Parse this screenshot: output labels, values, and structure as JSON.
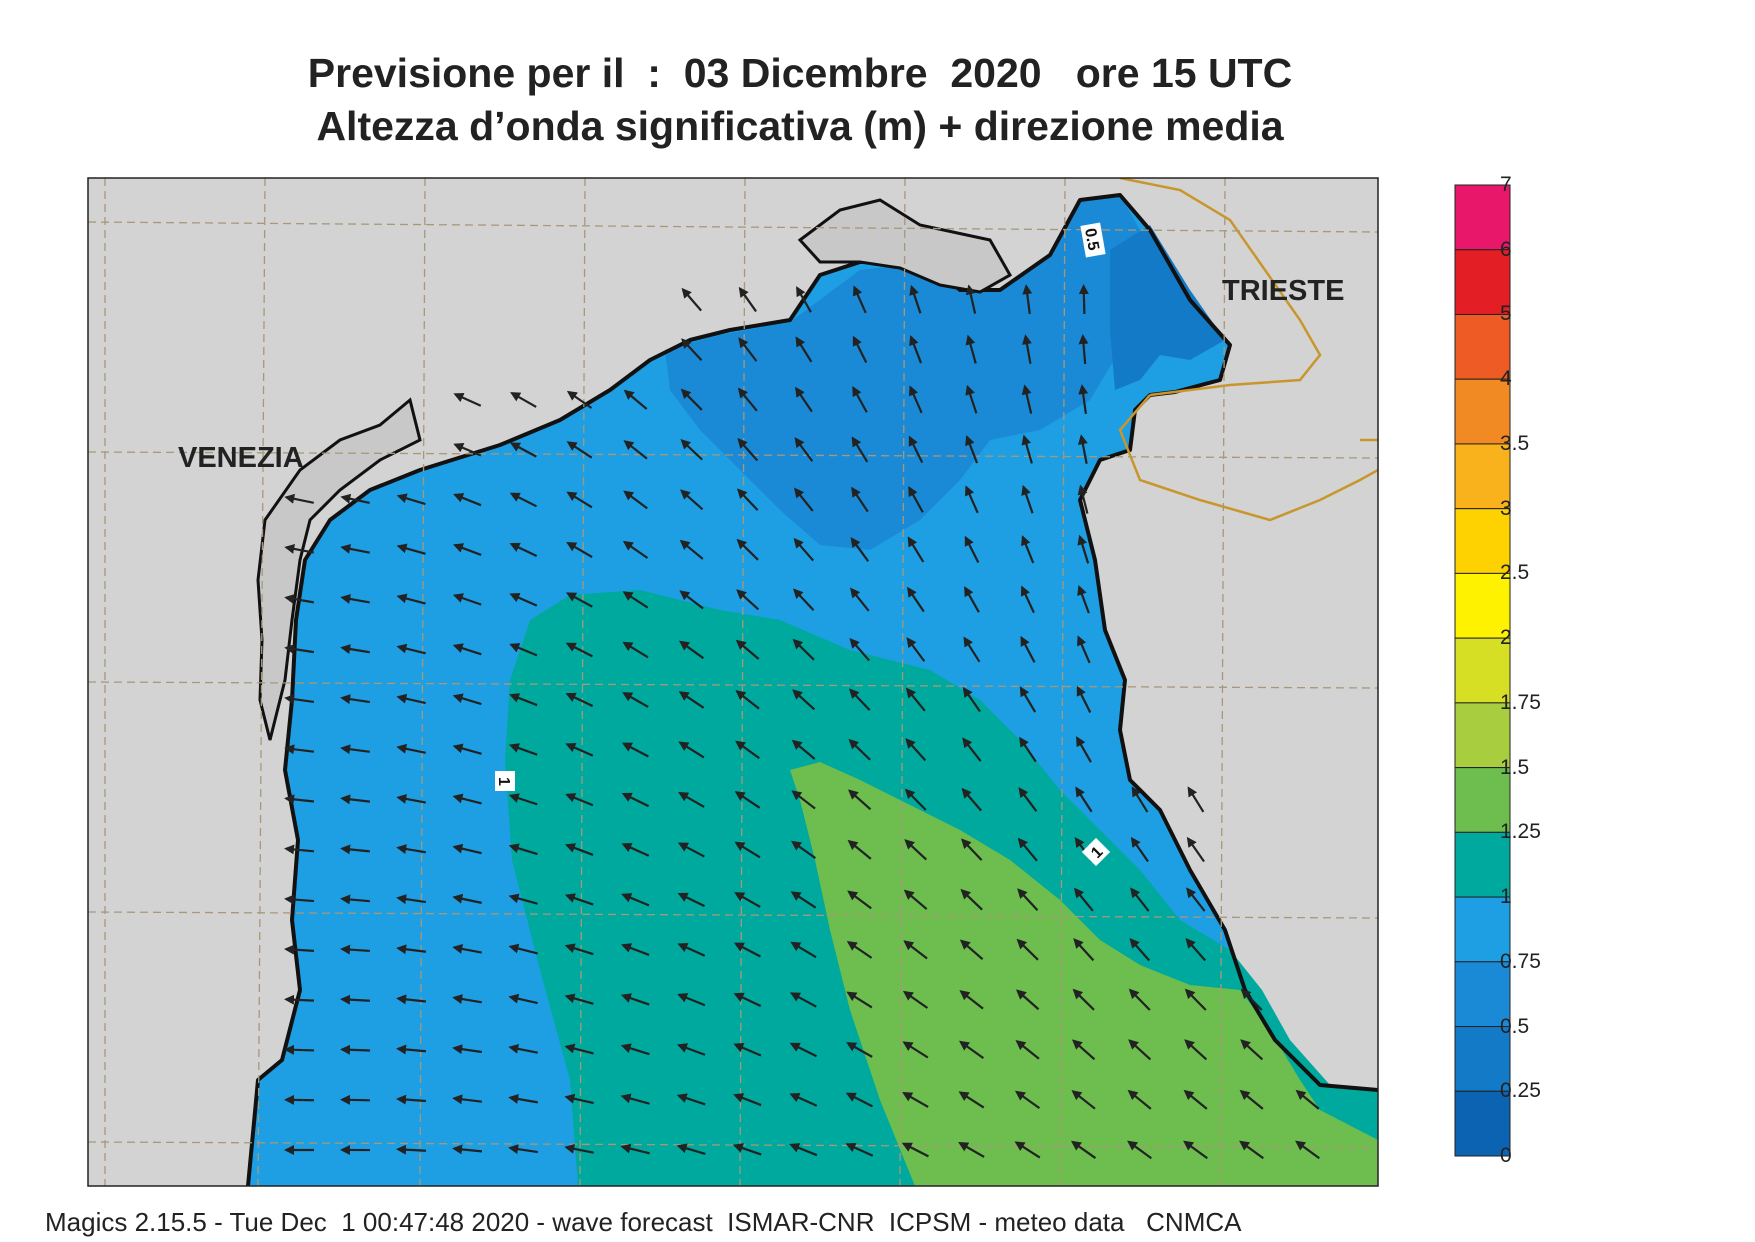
{
  "title": {
    "line1": "Previsione per il  :  03 Dicembre  2020   ore 15 UTC",
    "line2": "Altezza d’onda significativa (m) + direzione media"
  },
  "places": {
    "venezia": "VENEZIA",
    "trieste": "TRIESTE"
  },
  "contour_labels": {
    "low": "0.5",
    "mid_west": "1",
    "mid_east": "1"
  },
  "colorbar": {
    "labels": [
      "7",
      "6",
      "5",
      "4",
      "3.5",
      "3",
      "2.5",
      "2",
      "1.75",
      "1.5",
      "1.25",
      "1",
      "0.75",
      "0.5",
      "0.25",
      "0"
    ],
    "colors": [
      "#e8176a",
      "#e31e24",
      "#ee5b24",
      "#f18a22",
      "#f9b21b",
      "#fdd200",
      "#fff200",
      "#d6df24",
      "#a8cd3e",
      "#6dbd4f",
      "#00a99d",
      "#1e9fe3",
      "#1a8ad6",
      "#137ac8",
      "#0b63b2"
    ]
  },
  "footer": "Magics 2.15.5 - Tue Dec  1 00:47:48 2020 - wave forecast  ISMAR-CNR  ICPSM - meteo data   CNMCA",
  "colors": {
    "land": "#d3d3d3",
    "grid": "#a89878",
    "coast": "#111111",
    "border": "#c8962c"
  }
}
